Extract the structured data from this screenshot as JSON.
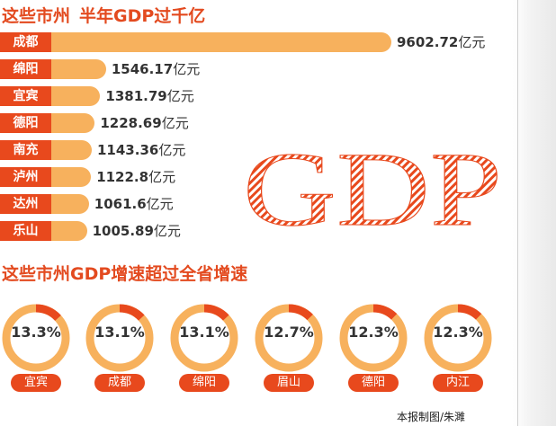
{
  "title_left": "这些市州",
  "title_right": "半年GDP过千亿",
  "subtitle": "这些市州GDP增速超过全省增速",
  "art_text": "GDP",
  "credit": "本报制图/朱濉",
  "colors": {
    "accent": "#e8491d",
    "bar": "#f7b15d",
    "ring_track": "#f7b15d",
    "ring_highlight": "#e8491d"
  },
  "chart_data": [
    {
      "type": "bar",
      "orientation": "horizontal",
      "title": "这些市州 半年GDP过千亿",
      "unit": "亿元",
      "categories": [
        "成都",
        "绵阳",
        "宜宾",
        "德阳",
        "南充",
        "泸州",
        "达州",
        "乐山"
      ],
      "values": [
        9602.72,
        1546.17,
        1381.79,
        1228.69,
        1143.36,
        1122.8,
        1061.6,
        1005.89
      ],
      "value_labels": [
        "9602.72",
        "1546.17",
        "1381.79",
        "1228.69",
        "1143.36",
        "1122.8",
        "1061.6",
        "1005.89"
      ]
    },
    {
      "type": "pie",
      "style": "donut",
      "title": "这些市州GDP增速超过全省增速",
      "categories": [
        "宜宾",
        "成都",
        "绵阳",
        "眉山",
        "德阳",
        "内江"
      ],
      "values": [
        13.3,
        13.1,
        13.1,
        12.7,
        12.3,
        12.3
      ],
      "value_labels": [
        "13.3%",
        "13.1%",
        "13.1%",
        "12.7%",
        "12.3%",
        "12.3%"
      ]
    }
  ]
}
